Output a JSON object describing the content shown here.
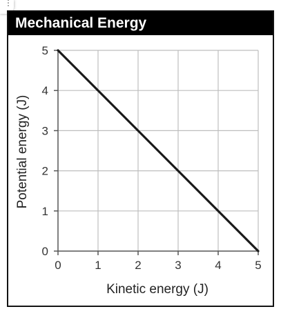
{
  "chart_data": {
    "type": "line",
    "title": "Mechanical Energy",
    "xlabel": "Kinetic energy (J)",
    "ylabel": "Potential energy (J)",
    "xlim": [
      0,
      5
    ],
    "ylim": [
      0,
      5
    ],
    "x_ticks": [
      "0",
      "1",
      "2",
      "3",
      "4",
      "5"
    ],
    "y_ticks": [
      "0",
      "1",
      "2",
      "3",
      "4",
      "5"
    ],
    "grid": true,
    "series": [
      {
        "x": [
          0,
          5
        ],
        "y": [
          5,
          0
        ],
        "color": "#1a1a1a"
      }
    ]
  }
}
